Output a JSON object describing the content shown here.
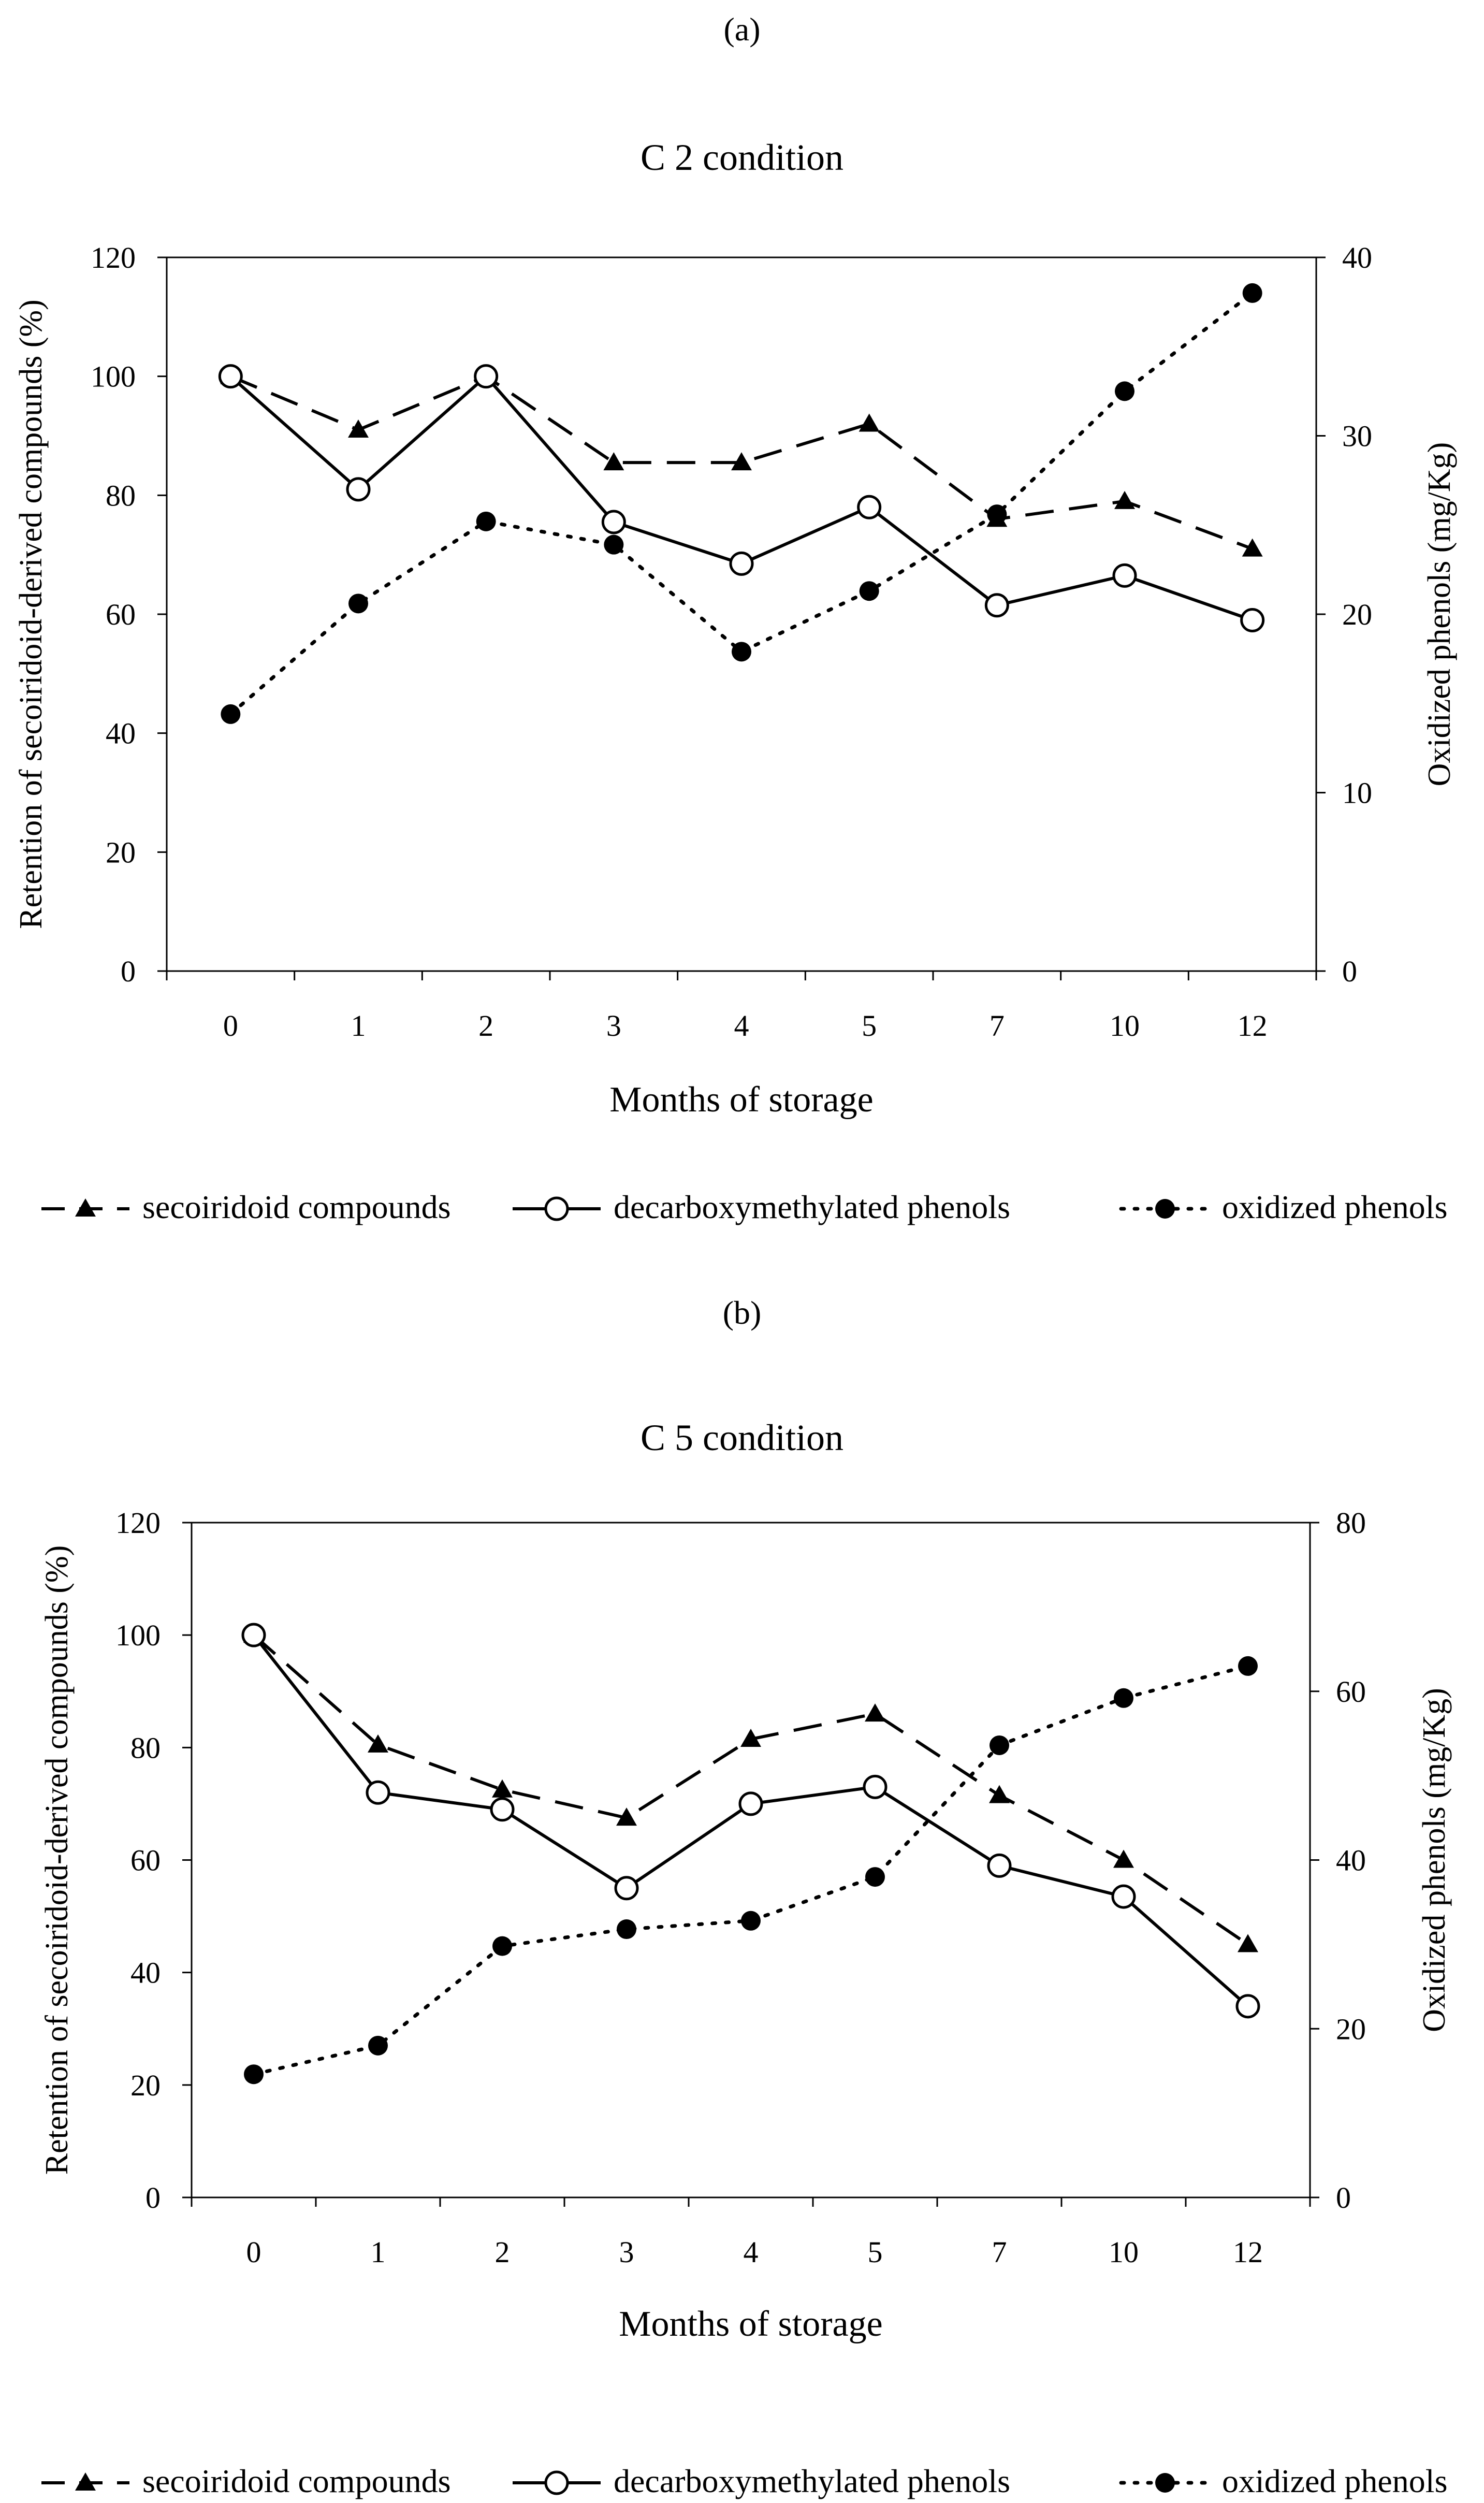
{
  "chart_data": [
    {
      "panel_label": "(a)",
      "type": "line",
      "title": "C 2 condition",
      "xlabel": "Months of storage",
      "ylabel_left": "Retention of secoiridoid-derived  compounds (%)",
      "ylabel_right": "Oxidized phenols (mg/Kg)",
      "categories": [
        "0",
        "1",
        "2",
        "3",
        "4",
        "5",
        "7",
        "10",
        "12"
      ],
      "ylim_left": [
        0,
        120
      ],
      "yticks_left": [
        "0",
        "20",
        "40",
        "60",
        "80",
        "100",
        "120"
      ],
      "ylim_right": [
        0,
        40
      ],
      "yticks_right": [
        "0",
        "10",
        "20",
        "30",
        "40"
      ],
      "grid": false,
      "legend_position": "bottom",
      "series": [
        {
          "name": "secoiridoid compounds",
          "axis": "left",
          "style": "dashed",
          "marker": "filled-triangle",
          "values": [
            100,
            91,
            100,
            85.5,
            85.5,
            92,
            76,
            79,
            71
          ]
        },
        {
          "name": "decarboxymethylated phenols",
          "axis": "left",
          "style": "solid",
          "marker": "open-circle",
          "values": [
            100,
            81,
            100,
            75.5,
            68.5,
            78,
            61.5,
            66.5,
            59
          ]
        },
        {
          "name": "oxidized phenols",
          "axis": "right",
          "style": "dotted",
          "marker": "filled-circle",
          "values": [
            14.4,
            20.6,
            25.2,
            23.9,
            17.9,
            21.3,
            25.6,
            32.5,
            38
          ]
        }
      ]
    },
    {
      "panel_label": "(b)",
      "type": "line",
      "title": "C 5 condition",
      "xlabel": "Months of storage",
      "ylabel_left": "Retention of secoiridoid-derived  compounds (%)",
      "ylabel_right": "Oxidized phenols (mg/Kg)",
      "categories": [
        "0",
        "1",
        "2",
        "3",
        "4",
        "5",
        "7",
        "10",
        "12"
      ],
      "ylim_left": [
        0,
        120
      ],
      "yticks_left": [
        "0",
        "20",
        "40",
        "60",
        "80",
        "100",
        "120"
      ],
      "ylim_right": [
        0,
        80
      ],
      "yticks_right": [
        "0",
        "20",
        "40",
        "60",
        "80"
      ],
      "grid": false,
      "legend_position": "bottom",
      "series": [
        {
          "name": "secoiridoid compounds",
          "axis": "left",
          "style": "dashed",
          "marker": "filled-triangle",
          "values": [
            100,
            80.5,
            72.5,
            67.5,
            81.5,
            86,
            71.5,
            60,
            45
          ]
        },
        {
          "name": "decarboxymethylated phenols",
          "axis": "left",
          "style": "solid",
          "marker": "open-circle",
          "values": [
            100,
            72,
            69,
            55,
            70,
            73,
            59,
            53.5,
            34
          ]
        },
        {
          "name": "oxidized phenols",
          "axis": "right",
          "style": "dotted",
          "marker": "filled-circle",
          "values": [
            14.6,
            18,
            29.8,
            31.8,
            32.8,
            38,
            53.6,
            59.2,
            63
          ]
        }
      ]
    }
  ]
}
